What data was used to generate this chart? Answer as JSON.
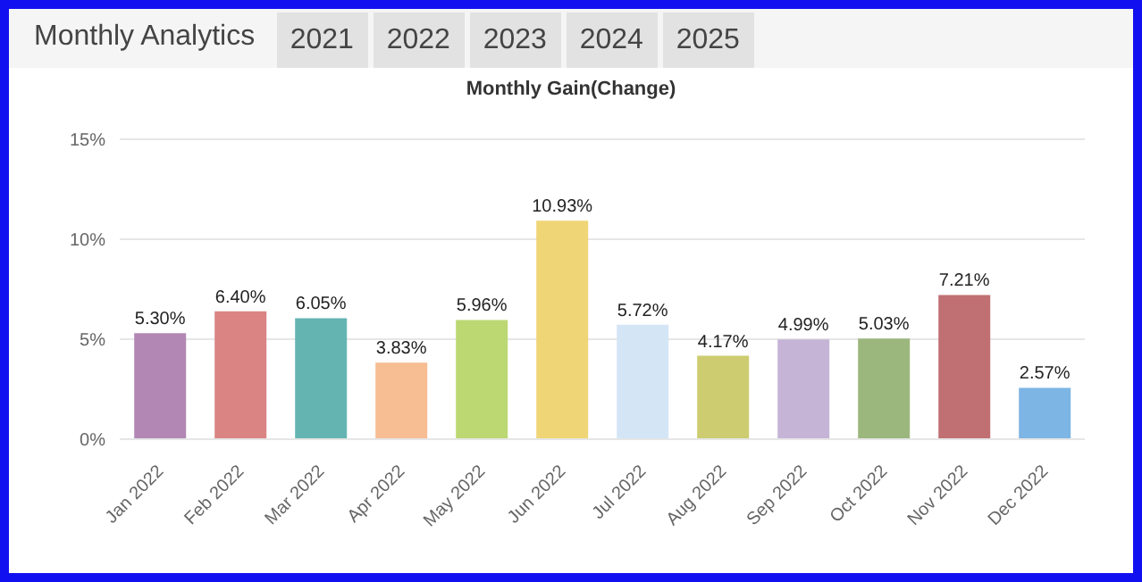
{
  "chart_data": {
    "type": "bar",
    "title": "Monthly Analytics",
    "subtitle": "Monthly Gain(Change)",
    "annotations": [
      "2021",
      "2022",
      "2023",
      "2024",
      "2025"
    ],
    "categories": [
      "Jan 2022",
      "Feb 2022",
      "Mar 2022",
      "Apr 2022",
      "May 2022",
      "Jun 2022",
      "Jul 2022",
      "Aug 2022",
      "Sep 2022",
      "Oct 2022",
      "Nov 2022",
      "Dec 2022"
    ],
    "values": [
      5.3,
      6.4,
      6.05,
      3.83,
      5.96,
      10.93,
      5.72,
      4.17,
      4.99,
      5.03,
      7.21,
      2.57
    ],
    "colors": [
      "#b287b4",
      "#da8484",
      "#64b4b2",
      "#f7bd93",
      "#bcd872",
      "#efd576",
      "#d4e6f6",
      "#cdcc70",
      "#c6b4d6",
      "#9cb77e",
      "#c07073",
      "#7db5e4"
    ],
    "value_labels": [
      "5.30%",
      "6.40%",
      "6.05%",
      "3.83%",
      "5.96%",
      "10.93%",
      "5.72%",
      "4.17%",
      "4.99%",
      "5.03%",
      "7.21%",
      "2.57%"
    ],
    "ylim": [
      0,
      15
    ],
    "yticks": [
      {
        "value": 0,
        "label": "0%"
      },
      {
        "value": 5,
        "label": "5%"
      },
      {
        "value": 10,
        "label": "10%"
      },
      {
        "value": 15,
        "label": "15%"
      }
    ],
    "grid": "y"
  }
}
